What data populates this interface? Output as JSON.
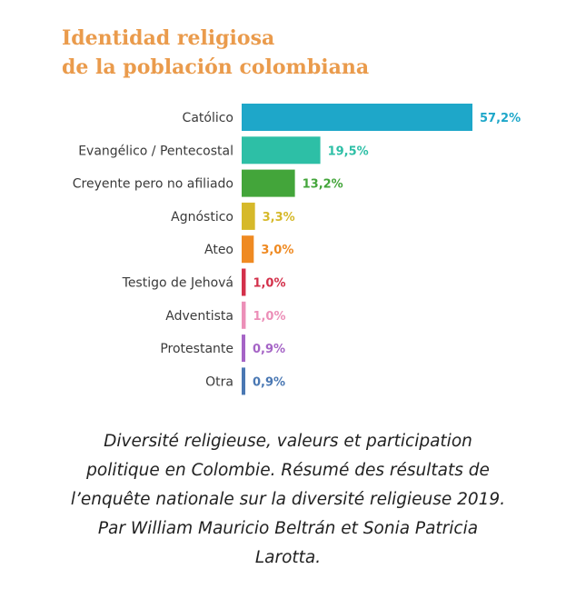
{
  "chart_data": {
    "type": "bar",
    "orientation": "horizontal",
    "title_lines": [
      "Identidad religiosa",
      "de la población colombiana"
    ],
    "categories": [
      "Católico",
      "Evangélico / Pentecostal",
      "Creyente pero no afiliado",
      "Agnóstico",
      "Ateo",
      "Testigo de Jehová",
      "Adventista",
      "Protestante",
      "Otra"
    ],
    "values": [
      57.2,
      19.5,
      13.2,
      3.3,
      3.0,
      1.0,
      1.0,
      0.9,
      0.9
    ],
    "value_labels": [
      "57,2%",
      "19,5%",
      "13,2%",
      "3,3%",
      "3,0%",
      "1,0%",
      "1,0%",
      "0,9%",
      "0,9%"
    ],
    "colors": [
      "#1ea7c9",
      "#2dbfa6",
      "#43a53a",
      "#d6b92a",
      "#ef8a22",
      "#d3304a",
      "#ec8fb8",
      "#a564c6",
      "#4a78b3"
    ],
    "value_label_colors": [
      "#1ea7c9",
      "#2dbfa6",
      "#43a53a",
      "#d6b92a",
      "#ef8a22",
      "#d3304a",
      "#ec8fb8",
      "#a564c6",
      "#4a78b3"
    ],
    "xlim": [
      0,
      57.2
    ],
    "units": "%"
  },
  "caption": {
    "lines": [
      "Diversité religieuse, valeurs et participation",
      "politique en Colombie. Résumé des résultats de",
      "l’enquête nationale sur la diversité religieuse 2019.",
      "Par William Mauricio Beltrán et Sonia Patricia",
      "Larotta."
    ]
  }
}
